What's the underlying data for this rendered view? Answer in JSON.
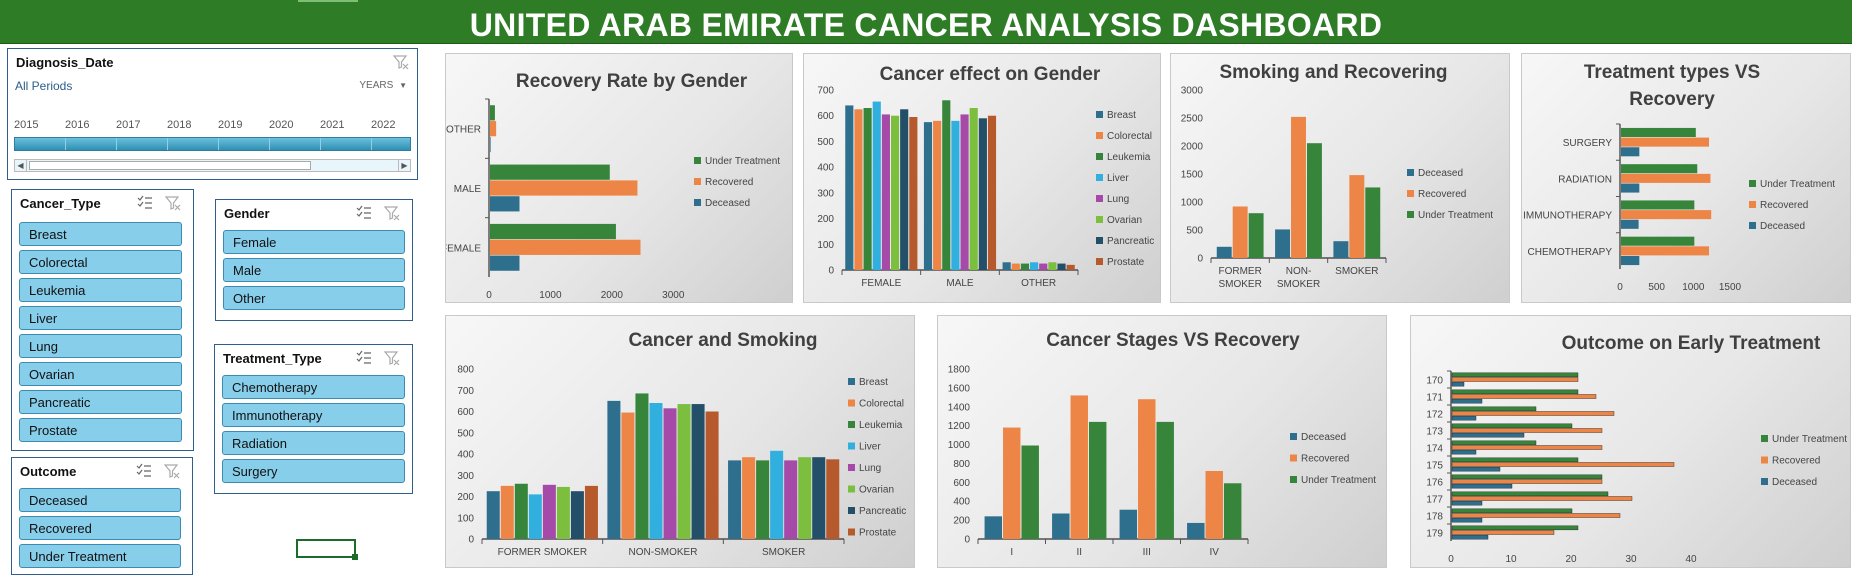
{
  "title": "UNITED ARAB EMIRATE CANCER ANALYSIS DASHBOARD",
  "timeline": {
    "header": "Diagnosis_Date",
    "period": "All Periods",
    "level": "YEARS",
    "years": [
      "2015",
      "2016",
      "2017",
      "2018",
      "2019",
      "2020",
      "2021",
      "2022"
    ]
  },
  "slicers": {
    "cancer_type": {
      "header": "Cancer_Type",
      "items": [
        "Breast",
        "Colorectal",
        "Leukemia",
        "Liver",
        "Lung",
        "Ovarian",
        "Pancreatic",
        "Prostate"
      ]
    },
    "gender": {
      "header": "Gender",
      "items": [
        "Female",
        "Male",
        "Other"
      ]
    },
    "treatment_type": {
      "header": "Treatment_Type",
      "items": [
        "Chemotherapy",
        "Immunotherapy",
        "Radiation",
        "Surgery"
      ]
    },
    "outcome": {
      "header": "Outcome",
      "items": [
        "Deceased",
        "Recovered",
        "Under Treatment"
      ]
    }
  },
  "colors": {
    "blue": "#2e6f8e",
    "orange": "#ed8547",
    "green": "#37853b",
    "c_breast": "#2e6f8e",
    "c_colorectal": "#ed8547",
    "c_leukemia": "#37853b",
    "c_liver": "#31b0e0",
    "c_lung": "#a54aa8",
    "c_ovarian": "#7cbf3f",
    "c_pancreatic": "#234f69",
    "c_prostate": "#b65a2e"
  },
  "chart_data": [
    {
      "id": "recovery_gender",
      "type": "bar",
      "orientation": "horizontal",
      "title": "Recovery Rate by Gender",
      "categories": [
        "FEMALE",
        "MALE",
        "OTHER"
      ],
      "series": [
        {
          "name": "Under Treatment",
          "values": [
            2050,
            1950,
            80
          ]
        },
        {
          "name": "Recovered",
          "values": [
            2450,
            2400,
            100
          ]
        },
        {
          "name": "Deceased",
          "values": [
            480,
            480,
            10
          ]
        }
      ],
      "xlim": [
        0,
        3500
      ],
      "ticks": [
        "0",
        "1000",
        "2000",
        "3000"
      ]
    },
    {
      "id": "cancer_gender",
      "type": "bar",
      "title": "Cancer effect on Gender",
      "categories": [
        "FEMALE",
        "MALE",
        "OTHER"
      ],
      "series": [
        {
          "name": "Breast",
          "values": [
            640,
            575,
            30
          ]
        },
        {
          "name": "Colorectal",
          "values": [
            625,
            580,
            25
          ]
        },
        {
          "name": "Leukemia",
          "values": [
            630,
            660,
            25
          ]
        },
        {
          "name": "Liver",
          "values": [
            655,
            580,
            30
          ]
        },
        {
          "name": "Lung",
          "values": [
            605,
            605,
            25
          ]
        },
        {
          "name": "Ovarian",
          "values": [
            600,
            630,
            30
          ]
        },
        {
          "name": "Pancreatic",
          "values": [
            625,
            590,
            25
          ]
        },
        {
          "name": "Prostate",
          "values": [
            595,
            600,
            20
          ]
        }
      ],
      "ylim": [
        0,
        700
      ],
      "ticks": [
        "0",
        "100",
        "200",
        "300",
        "400",
        "500",
        "600",
        "700"
      ]
    },
    {
      "id": "smoking_recovering",
      "type": "bar",
      "title": "Smoking and Recovering",
      "categories": [
        "FORMER SMOKER",
        "NON-SMOKER",
        "SMOKER"
      ],
      "category_lines": [
        [
          "FORMER",
          "SMOKER"
        ],
        [
          "NON-",
          "SMOKER"
        ],
        [
          "SMOKER"
        ]
      ],
      "series": [
        {
          "name": "Deceased",
          "values": [
            200,
            510,
            300
          ]
        },
        {
          "name": "Recovered",
          "values": [
            920,
            2520,
            1480
          ]
        },
        {
          "name": "Under Treatment",
          "values": [
            800,
            2050,
            1260
          ]
        }
      ],
      "ylim": [
        0,
        3000
      ],
      "ticks": [
        "0",
        "500",
        "1000",
        "1500",
        "2000",
        "2500",
        "3000"
      ]
    },
    {
      "id": "treatment_recovery",
      "type": "bar",
      "orientation": "horizontal",
      "title": "Treatment types VS Recovery",
      "title_lines": [
        "Treatment types VS",
        "Recovery"
      ],
      "categories": [
        "CHEMOTHERAPY",
        "IMMUNOTHERAPY",
        "RADIATION",
        "SURGERY"
      ],
      "series": [
        {
          "name": "Under Treatment",
          "values": [
            1000,
            1000,
            1040,
            1020
          ]
        },
        {
          "name": "Recovered",
          "values": [
            1200,
            1230,
            1220,
            1200
          ]
        },
        {
          "name": "Deceased",
          "values": [
            250,
            240,
            250,
            250
          ]
        }
      ],
      "xlim": [
        0,
        1500
      ],
      "ticks": [
        "0",
        "500",
        "1000",
        "1500"
      ]
    },
    {
      "id": "cancer_smoking",
      "type": "bar",
      "title": "Cancer and Smoking",
      "categories": [
        "FORMER SMOKER",
        "NON-SMOKER",
        "SMOKER"
      ],
      "series": [
        {
          "name": "Breast",
          "values": [
            225,
            650,
            370
          ]
        },
        {
          "name": "Colorectal",
          "values": [
            250,
            595,
            385
          ]
        },
        {
          "name": "Leukemia",
          "values": [
            260,
            685,
            370
          ]
        },
        {
          "name": "Liver",
          "values": [
            210,
            640,
            415
          ]
        },
        {
          "name": "Lung",
          "values": [
            255,
            615,
            370
          ]
        },
        {
          "name": "Ovarian",
          "values": [
            245,
            635,
            385
          ]
        },
        {
          "name": "Pancreatic",
          "values": [
            225,
            635,
            385
          ]
        },
        {
          "name": "Prostate",
          "values": [
            250,
            600,
            375
          ]
        }
      ],
      "ylim": [
        0,
        800
      ],
      "ticks": [
        "0",
        "100",
        "200",
        "300",
        "400",
        "500",
        "600",
        "700",
        "800"
      ]
    },
    {
      "id": "stages_recovery",
      "type": "bar",
      "title": "Cancer Stages VS Recovery",
      "categories": [
        "I",
        "II",
        "III",
        "IV"
      ],
      "series": [
        {
          "name": "Deceased",
          "values": [
            240,
            270,
            310,
            170
          ]
        },
        {
          "name": "Recovered",
          "values": [
            1180,
            1520,
            1480,
            720
          ]
        },
        {
          "name": "Under Treatment",
          "values": [
            990,
            1240,
            1240,
            590
          ]
        }
      ],
      "ylim": [
        0,
        1800
      ],
      "ticks": [
        "0",
        "200",
        "400",
        "600",
        "800",
        "1000",
        "1200",
        "1400",
        "1600",
        "1800"
      ]
    },
    {
      "id": "early_treatment",
      "type": "bar",
      "orientation": "horizontal",
      "title": "Outcome on Early Treatment",
      "categories": [
        "170",
        "171",
        "172",
        "173",
        "174",
        "175",
        "176",
        "177",
        "178",
        "179"
      ],
      "series": [
        {
          "name": "Under Treatment",
          "values": [
            21,
            21,
            14,
            20,
            14,
            21,
            25,
            26,
            20,
            21
          ]
        },
        {
          "name": "Recovered",
          "values": [
            21,
            24,
            27,
            25,
            25,
            37,
            25,
            30,
            28,
            17
          ]
        },
        {
          "name": "Deceased",
          "values": [
            2,
            5,
            4,
            12,
            4,
            8,
            10,
            5,
            5,
            6
          ]
        }
      ],
      "xlim": [
        0,
        45
      ],
      "ticks": [
        "0",
        "10",
        "20",
        "30",
        "40"
      ]
    }
  ]
}
